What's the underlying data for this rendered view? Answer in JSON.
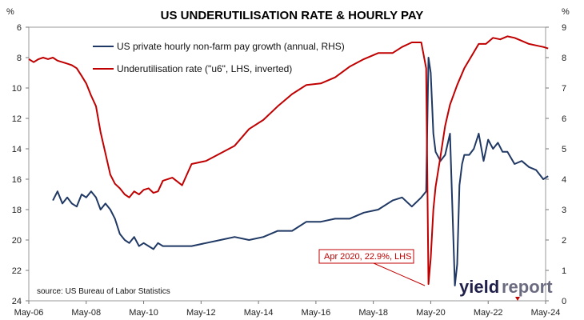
{
  "chart_data": {
    "type": "line",
    "title": "US UNDERUTILISATION RATE & HOURLY PAY",
    "left_unit": "%",
    "right_unit": "%",
    "source": "source: US Bureau of Labor Statistics",
    "logo": {
      "part1": "yield",
      "part2": "report"
    },
    "annotation": "Apr 2020, 22.9%, LHS",
    "x_ticks": [
      "May-06",
      "May-08",
      "May-10",
      "May-12",
      "May-14",
      "May-16",
      "May-18",
      "May-20",
      "May-22",
      "May-24"
    ],
    "y_left_ticks": [
      "6",
      "8",
      "10",
      "12",
      "14",
      "16",
      "18",
      "20",
      "22",
      "24"
    ],
    "y_right_ticks": [
      "9",
      "8",
      "7",
      "6",
      "5",
      "4",
      "3",
      "2",
      "1",
      "0"
    ],
    "y_left_range": [
      6,
      24
    ],
    "y_left_inverted": true,
    "y_right_range": [
      0,
      9
    ],
    "grid": false,
    "legend_position": "top-center",
    "series": [
      {
        "name": "US private hourly non-farm pay growth (annual, RHS)",
        "axis": "right",
        "color": "#1f3864",
        "x": [
          2007.17,
          2007.33,
          2007.5,
          2007.67,
          2007.83,
          2008.0,
          2008.17,
          2008.33,
          2008.5,
          2008.67,
          2008.83,
          2009.0,
          2009.17,
          2009.33,
          2009.5,
          2009.67,
          2009.83,
          2010.0,
          2010.17,
          2010.33,
          2010.5,
          2010.67,
          2010.83,
          2011.0,
          2011.5,
          2012.0,
          2012.5,
          2013.0,
          2013.5,
          2014.0,
          2014.5,
          2015.0,
          2015.5,
          2016.0,
          2016.5,
          2017.0,
          2017.5,
          2018.0,
          2018.5,
          2019.0,
          2019.33,
          2019.67,
          2020.0,
          2020.17,
          2020.25,
          2020.33,
          2020.42,
          2020.5,
          2020.67,
          2020.83,
          2021.0,
          2021.17,
          2021.25,
          2021.33,
          2021.42,
          2021.5,
          2021.67,
          2021.83,
          2022.0,
          2022.17,
          2022.33,
          2022.5,
          2022.67,
          2022.83,
          2023.0,
          2023.25,
          2023.5,
          2023.75,
          2024.0,
          2024.25,
          2024.42
        ],
        "y": [
          3.3,
          3.6,
          3.2,
          3.4,
          3.2,
          3.1,
          3.5,
          3.4,
          3.6,
          3.4,
          3.0,
          3.2,
          3.0,
          2.7,
          2.2,
          2.0,
          1.9,
          2.1,
          1.8,
          1.9,
          1.8,
          1.7,
          1.9,
          1.8,
          1.8,
          1.8,
          1.9,
          2.0,
          2.1,
          2.0,
          2.1,
          2.3,
          2.3,
          2.6,
          2.6,
          2.7,
          2.7,
          2.9,
          3.0,
          3.3,
          3.4,
          3.1,
          3.4,
          3.6,
          8.0,
          7.5,
          5.5,
          4.9,
          4.6,
          4.8,
          5.5,
          0.5,
          1.2,
          3.8,
          4.5,
          4.8,
          4.8,
          5.0,
          5.5,
          4.6,
          5.3,
          5.0,
          5.2,
          4.9,
          4.9,
          4.5,
          4.6,
          4.4,
          4.3,
          4.0,
          4.1
        ]
      },
      {
        "name": "Underutilisation rate (\"u6\", LHS, inverted)",
        "axis": "left",
        "color": "#c00000",
        "x": [
          2006.33,
          2006.5,
          2006.67,
          2006.83,
          2007.0,
          2007.17,
          2007.33,
          2007.5,
          2007.67,
          2007.83,
          2008.0,
          2008.17,
          2008.33,
          2008.5,
          2008.67,
          2008.83,
          2009.0,
          2009.17,
          2009.33,
          2009.5,
          2009.67,
          2009.83,
          2010.0,
          2010.17,
          2010.33,
          2010.5,
          2010.67,
          2010.83,
          2011.0,
          2011.33,
          2011.67,
          2012.0,
          2012.5,
          2013.0,
          2013.5,
          2014.0,
          2014.5,
          2015.0,
          2015.5,
          2016.0,
          2016.5,
          2017.0,
          2017.5,
          2018.0,
          2018.5,
          2019.0,
          2019.33,
          2019.67,
          2020.0,
          2020.17,
          2020.25,
          2020.33,
          2020.42,
          2020.5,
          2020.67,
          2020.83,
          2021.0,
          2021.25,
          2021.5,
          2021.75,
          2022.0,
          2022.25,
          2022.5,
          2022.75,
          2023.0,
          2023.25,
          2023.5,
          2023.75,
          2024.0,
          2024.25,
          2024.42
        ],
        "y": [
          8.1,
          8.3,
          8.1,
          8.0,
          8.1,
          8.0,
          8.2,
          8.3,
          8.4,
          8.5,
          8.7,
          9.2,
          9.7,
          10.5,
          11.2,
          12.9,
          14.3,
          15.7,
          16.3,
          16.6,
          17.0,
          17.2,
          16.8,
          17.0,
          16.7,
          16.6,
          16.9,
          16.8,
          16.1,
          15.9,
          16.4,
          15.0,
          14.8,
          14.3,
          13.8,
          12.7,
          12.1,
          11.2,
          10.4,
          9.8,
          9.7,
          9.3,
          8.6,
          8.1,
          7.7,
          7.7,
          7.3,
          7.0,
          7.0,
          8.7,
          22.9,
          21.2,
          18.0,
          16.5,
          14.5,
          12.5,
          11.1,
          9.8,
          8.7,
          7.9,
          7.1,
          7.1,
          6.7,
          6.8,
          6.6,
          6.7,
          6.9,
          7.1,
          7.2,
          7.3,
          7.4
        ]
      }
    ]
  }
}
